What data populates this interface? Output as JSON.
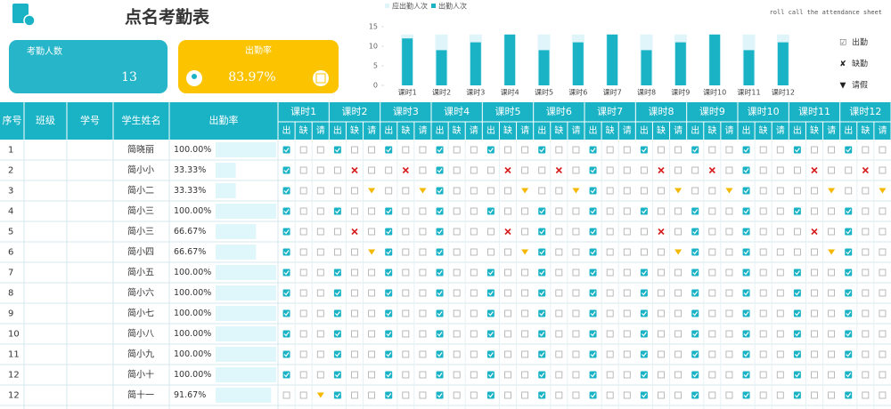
{
  "header": {
    "title": "点名考勤表",
    "subtitle": "roll call the attendance sheet"
  },
  "cards": [
    {
      "label": "考勤人数",
      "value": 13
    },
    {
      "label": "出勤率",
      "value": 83.97,
      "value_label": "83.97%"
    }
  ],
  "chart_data": {
    "type": "bar",
    "categories": [
      "课时1",
      "课时2",
      "课时3",
      "课时4",
      "课时5",
      "课时6",
      "课时7",
      "课时8",
      "课时9",
      "课时10",
      "课时11",
      "课时12"
    ],
    "series": [
      {
        "name": "应出勤人次",
        "color": "#dff5f9",
        "values": [
          13,
          13,
          13,
          13,
          13,
          13,
          13,
          13,
          13,
          13,
          13,
          13
        ]
      },
      {
        "name": "出勤人次",
        "color": "#1ab3c6",
        "values": [
          12,
          9,
          11,
          13,
          9,
          11,
          13,
          9,
          11,
          13,
          9,
          11
        ]
      }
    ],
    "ylim": [
      0,
      15
    ],
    "yticks": [
      0,
      5,
      10,
      15
    ],
    "overlap": true
  },
  "legend": [
    {
      "symbol": "☑",
      "label": "出勤"
    },
    {
      "symbol": "✘",
      "label": "缺勤"
    },
    {
      "symbol": "▼",
      "label": "请假"
    }
  ],
  "table": {
    "columns": [
      "序号",
      "班级",
      "学号",
      "学生姓名",
      "出勤率"
    ],
    "sessions": [
      "课时1",
      "课时2",
      "课时3",
      "课时4",
      "课时5",
      "课时6",
      "课时7",
      "课时8",
      "课时9",
      "课时10",
      "课时11",
      "课时12"
    ],
    "sub": [
      "出",
      "缺",
      "请"
    ],
    "rows": [
      {
        "no": 1,
        "name": "简晓丽",
        "rate": 100,
        "rate_label": "100.00%",
        "status": [
          "出",
          "出",
          "出",
          "出",
          "出",
          "出",
          "出",
          "出",
          "出",
          "出",
          "出",
          "出"
        ]
      },
      {
        "no": 2,
        "name": "简小小",
        "rate": 33.33,
        "rate_label": "33.33%",
        "status": [
          "出",
          "缺",
          "缺",
          "出",
          "缺",
          "缺",
          "出",
          "缺",
          "缺",
          "出",
          "缺",
          "缺"
        ]
      },
      {
        "no": 3,
        "name": "简小二",
        "rate": 33.33,
        "rate_label": "33.33%",
        "status": [
          "出",
          "请",
          "请",
          "出",
          "请",
          "请",
          "出",
          "请",
          "请",
          "出",
          "请",
          "请"
        ]
      },
      {
        "no": 4,
        "name": "简小三",
        "rate": 100,
        "rate_label": "100.00%",
        "status": [
          "出",
          "出",
          "出",
          "出",
          "出",
          "出",
          "出",
          "出",
          "出",
          "出",
          "出",
          "出"
        ]
      },
      {
        "no": 5,
        "name": "简小三",
        "rate": 66.67,
        "rate_label": "66.67%",
        "status": [
          "出",
          "缺",
          "出",
          "出",
          "缺",
          "出",
          "出",
          "缺",
          "出",
          "出",
          "缺",
          "出"
        ]
      },
      {
        "no": 6,
        "name": "简小四",
        "rate": 66.67,
        "rate_label": "66.67%",
        "status": [
          "出",
          "请",
          "出",
          "出",
          "请",
          "出",
          "出",
          "请",
          "出",
          "出",
          "请",
          "出"
        ]
      },
      {
        "no": 7,
        "name": "简小五",
        "rate": 100,
        "rate_label": "100.00%",
        "status": [
          "出",
          "出",
          "出",
          "出",
          "出",
          "出",
          "出",
          "出",
          "出",
          "出",
          "出",
          "出"
        ]
      },
      {
        "no": 8,
        "name": "简小六",
        "rate": 100,
        "rate_label": "100.00%",
        "status": [
          "出",
          "出",
          "出",
          "出",
          "出",
          "出",
          "出",
          "出",
          "出",
          "出",
          "出",
          "出"
        ]
      },
      {
        "no": 9,
        "name": "简小七",
        "rate": 100,
        "rate_label": "100.00%",
        "status": [
          "出",
          "出",
          "出",
          "出",
          "出",
          "出",
          "出",
          "出",
          "出",
          "出",
          "出",
          "出"
        ]
      },
      {
        "no": 10,
        "name": "简小八",
        "rate": 100,
        "rate_label": "100.00%",
        "status": [
          "出",
          "出",
          "出",
          "出",
          "出",
          "出",
          "出",
          "出",
          "出",
          "出",
          "出",
          "出"
        ]
      },
      {
        "no": 11,
        "name": "简小九",
        "rate": 100,
        "rate_label": "100.00%",
        "status": [
          "出",
          "出",
          "出",
          "出",
          "出",
          "出",
          "出",
          "出",
          "出",
          "出",
          "出",
          "出"
        ]
      },
      {
        "no": 12,
        "name": "简小十",
        "rate": 100,
        "rate_label": "100.00%",
        "status": [
          "出",
          "出",
          "出",
          "出",
          "出",
          "出",
          "出",
          "出",
          "出",
          "出",
          "出",
          "出"
        ]
      },
      {
        "no": 12,
        "name": "简十一",
        "rate": 91.67,
        "rate_label": "91.67%",
        "status": [
          "请",
          "出",
          "出",
          "出",
          "出",
          "出",
          "出",
          "出",
          "出",
          "出",
          "出",
          "出"
        ]
      }
    ]
  }
}
